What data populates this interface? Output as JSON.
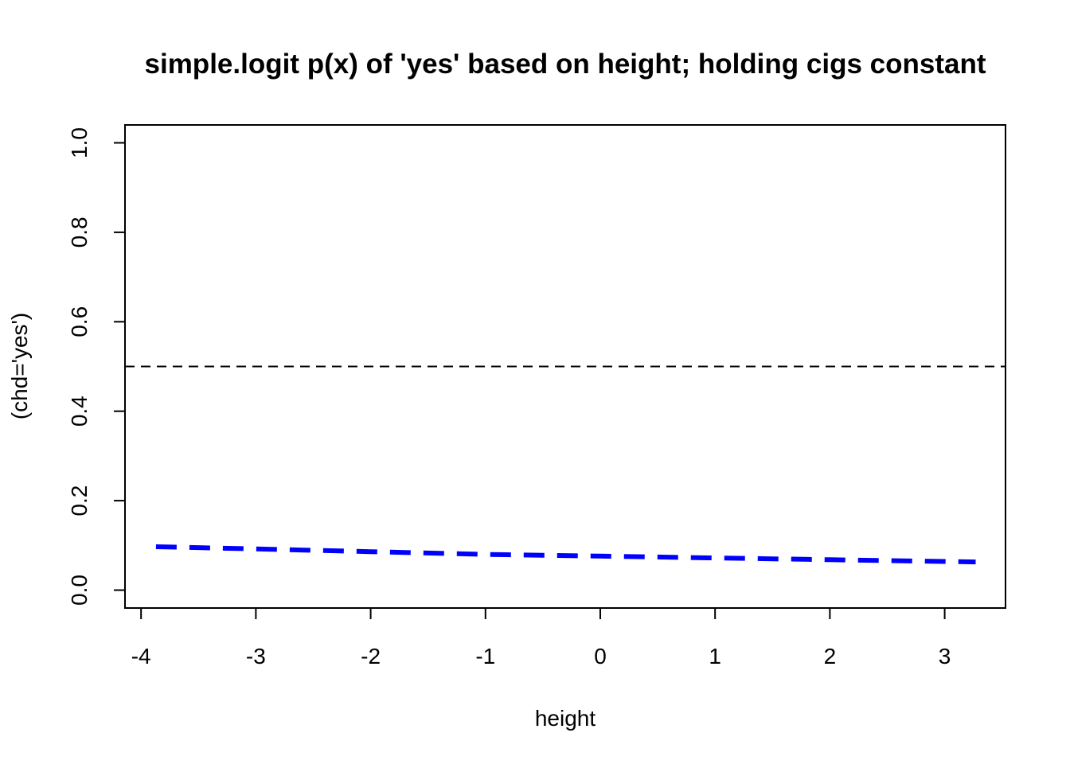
{
  "chart_data": {
    "type": "line",
    "title": "simple.logit p(x) of 'yes' based on height; holding cigs constant",
    "xlabel": "height",
    "ylabel": "(chd='yes')",
    "xlim": [
      -4.14,
      3.53
    ],
    "ylim": [
      -0.04,
      1.04
    ],
    "x_ticks": [
      -4,
      -3,
      -2,
      -1,
      0,
      1,
      2,
      3
    ],
    "y_ticks": [
      0.0,
      0.2,
      0.4,
      0.6,
      0.8,
      1.0
    ],
    "x_tick_labels": [
      "-4",
      "-3",
      "-2",
      "-1",
      "0",
      "1",
      "2",
      "3"
    ],
    "y_tick_labels": [
      "0.0",
      "0.2",
      "0.4",
      "0.6",
      "0.8",
      "1.0"
    ],
    "reference_line": {
      "y": 0.5,
      "style": "dashed",
      "color": "#000000"
    },
    "series": [
      {
        "color": "#0000ff",
        "style": "dashed",
        "x": [
          -3.87,
          -3.5,
          -3.0,
          -2.5,
          -2.0,
          -1.5,
          -1.0,
          -0.5,
          0.0,
          0.5,
          1.0,
          1.5,
          2.0,
          2.5,
          3.0,
          3.27
        ],
        "y": [
          0.097,
          0.095,
          0.092,
          0.089,
          0.086,
          0.083,
          0.08,
          0.078,
          0.076,
          0.074,
          0.072,
          0.07,
          0.068,
          0.066,
          0.064,
          0.063
        ]
      }
    ],
    "grid": false,
    "legend": "none"
  }
}
